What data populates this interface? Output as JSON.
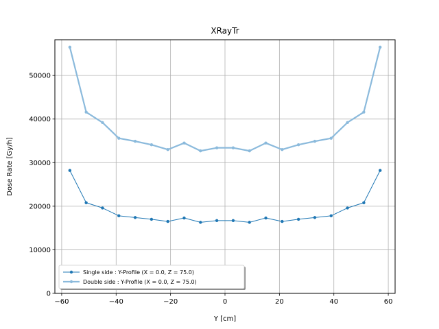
{
  "chart_data": {
    "type": "line",
    "title": "XRayTr",
    "xlabel": "Y [cm]",
    "ylabel": "Dose Rate [Gy/h]",
    "xlim": [
      -62.5,
      62.5
    ],
    "ylim": [
      0,
      58200
    ],
    "xticks": [
      -60,
      -40,
      -20,
      0,
      20,
      40,
      60
    ],
    "xtick_labels": [
      "−60",
      "−40",
      "−20",
      "0",
      "20",
      "40",
      "60"
    ],
    "yticks": [
      0,
      10000,
      20000,
      30000,
      40000,
      50000
    ],
    "ytick_labels": [
      "0",
      "10000",
      "20000",
      "30000",
      "40000",
      "50000"
    ],
    "grid": true,
    "legend_position": "lower-left",
    "x": [
      -57,
      -51,
      -45,
      -39,
      -33,
      -27,
      -21,
      -15,
      -9,
      -3,
      3,
      9,
      15,
      21,
      27,
      33,
      39,
      45,
      51,
      57
    ],
    "series": [
      {
        "name": "Single side : Y-Profile (X = 0.0, Z = 75.0)",
        "color": "#1f77b4",
        "values": [
          28200,
          20800,
          19600,
          17800,
          17400,
          17000,
          16500,
          17300,
          16300,
          16700,
          16700,
          16300,
          17300,
          16500,
          17000,
          17400,
          17800,
          19600,
          20800,
          28200
        ]
      },
      {
        "name": "Double side : Y-Profile (X = 0.0, Z = 75.0)",
        "color": "#8bbadc",
        "values": [
          56500,
          41600,
          39200,
          35600,
          34900,
          34100,
          33000,
          34500,
          32700,
          33400,
          33400,
          32700,
          34500,
          33000,
          34100,
          34900,
          35600,
          39200,
          41600,
          56500
        ]
      }
    ]
  }
}
